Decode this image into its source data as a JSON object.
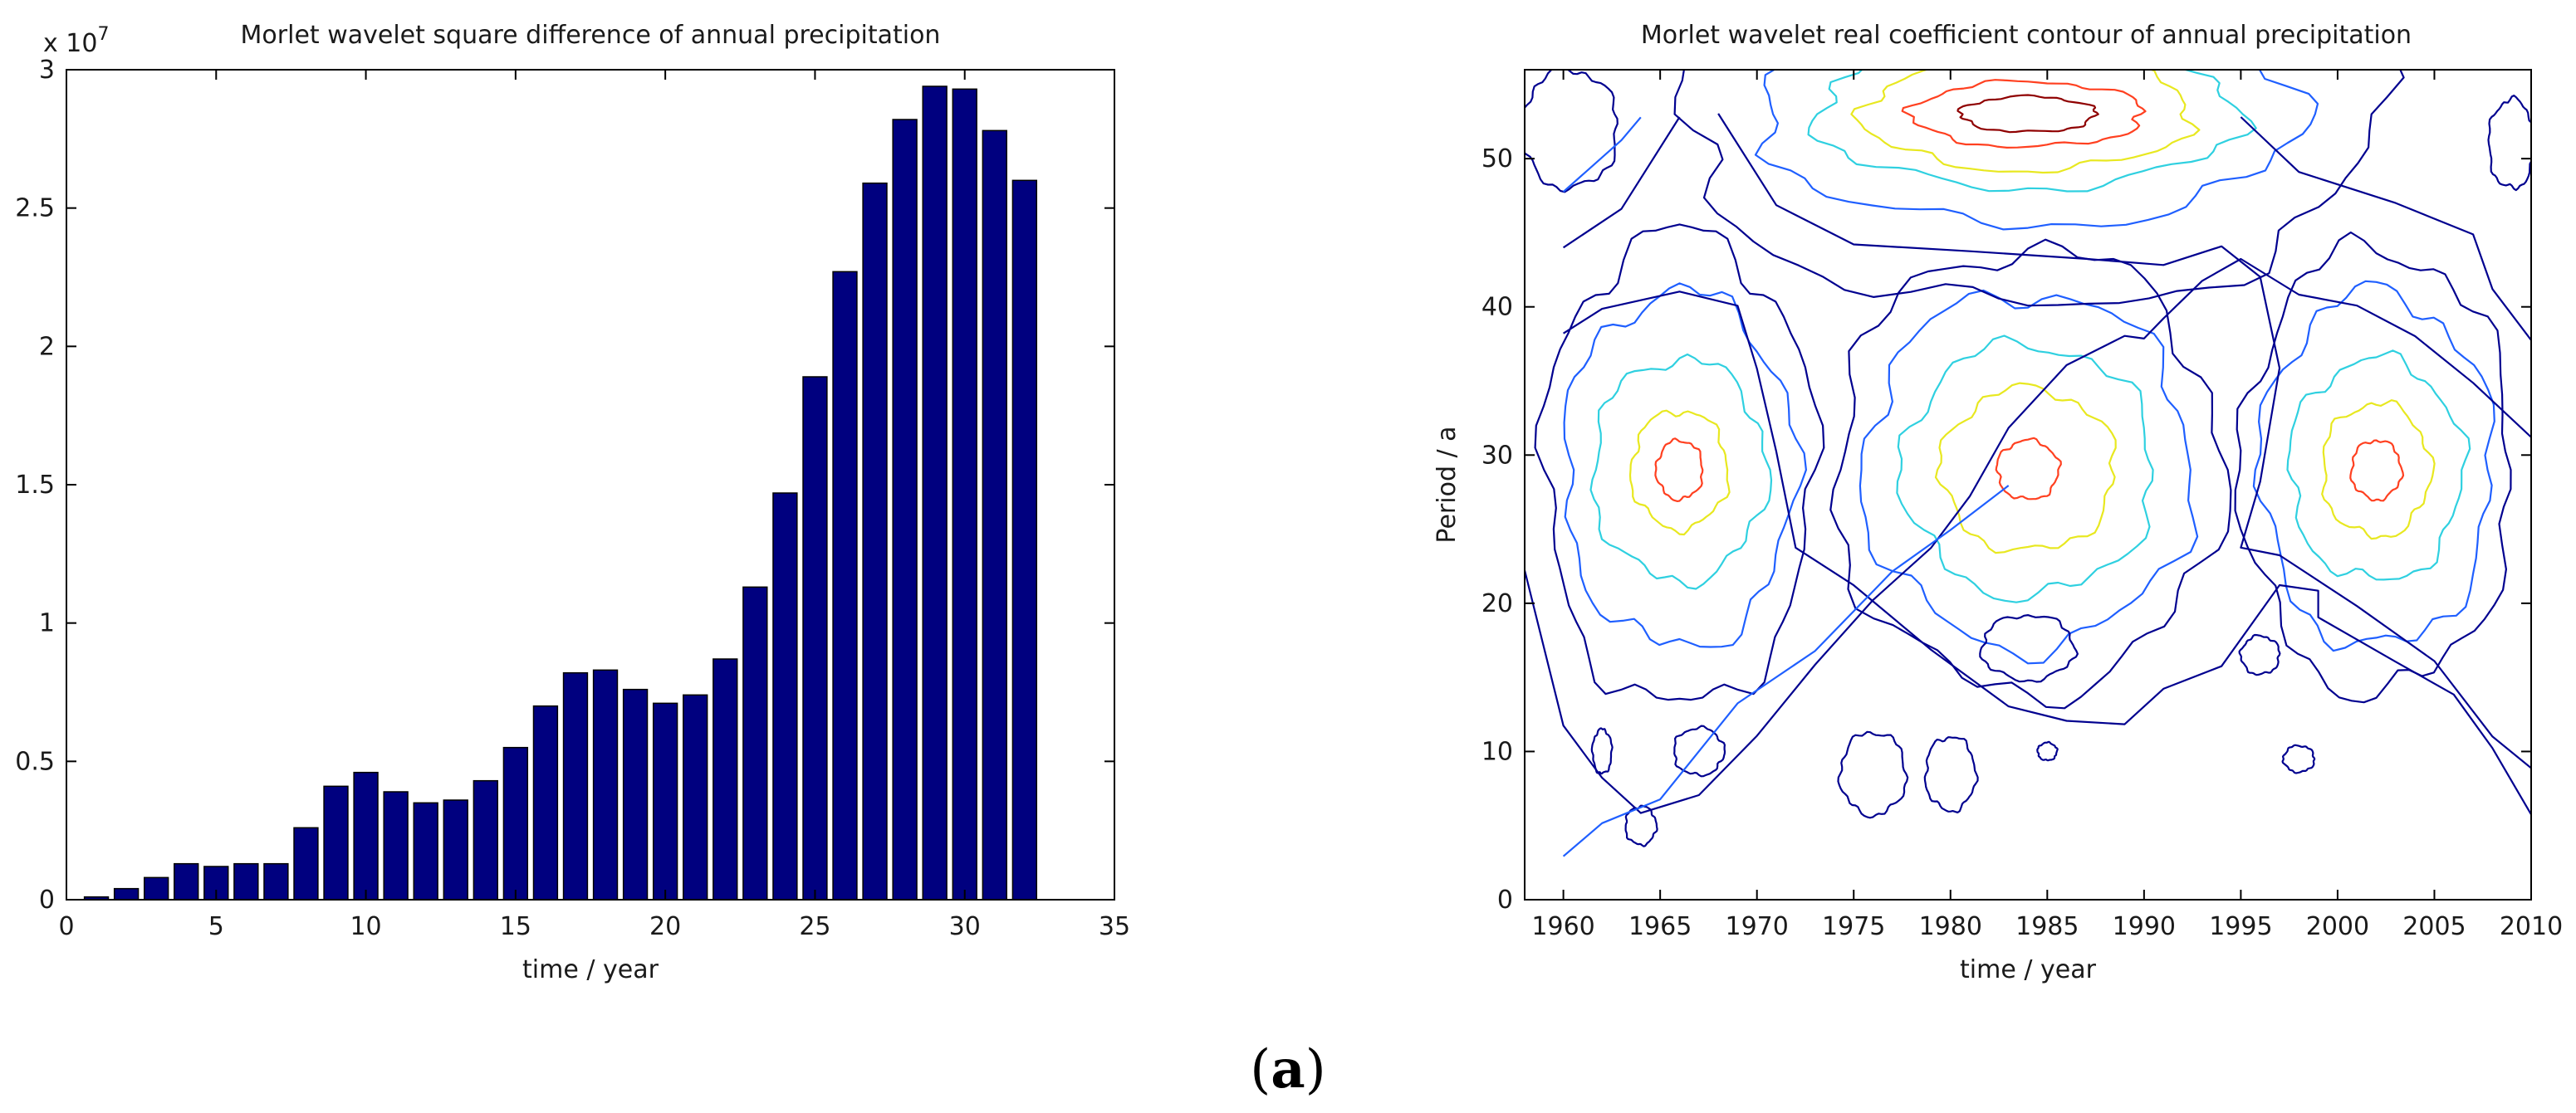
{
  "panel_label": {
    "open": "(",
    "letter": "a",
    "close": ")"
  },
  "chart_data": [
    {
      "type": "bar",
      "title": "Morlet wavelet square difference of annual precipitation",
      "xlabel": "time / year",
      "ylabel": "",
      "y_multiplier_label": "x 10",
      "y_multiplier_exponent": "7",
      "xlim": [
        0,
        35
      ],
      "ylim": [
        0,
        3
      ],
      "xticks": [
        0,
        5,
        10,
        15,
        20,
        25,
        30,
        35
      ],
      "xtick_labels": [
        "0",
        "5",
        "10",
        "15",
        "20",
        "25",
        "30",
        "35"
      ],
      "yticks": [
        0,
        0.5,
        1,
        1.5,
        2,
        2.5,
        3
      ],
      "ytick_labels": [
        "0",
        "0.5",
        "1",
        "1.5",
        "2",
        "2.5",
        "3"
      ],
      "bar_color": "#00007f",
      "x": [
        1,
        2,
        3,
        4,
        5,
        6,
        7,
        8,
        9,
        10,
        11,
        12,
        13,
        14,
        15,
        16,
        17,
        18,
        19,
        20,
        21,
        22,
        23,
        24,
        25,
        26,
        27,
        28,
        29,
        30,
        31,
        32
      ],
      "values": [
        0.01,
        0.04,
        0.08,
        0.13,
        0.12,
        0.13,
        0.13,
        0.26,
        0.41,
        0.46,
        0.39,
        0.35,
        0.36,
        0.43,
        0.55,
        0.7,
        0.82,
        0.83,
        0.76,
        0.71,
        0.74,
        0.87,
        1.13,
        1.47,
        1.89,
        2.27,
        2.59,
        2.82,
        2.94,
        2.93,
        2.78,
        2.6
      ]
    },
    {
      "type": "contour",
      "title": "Morlet wavelet real coefficient contour of annual precipitation",
      "xlabel": "time / year",
      "ylabel": "Period / a",
      "xlim": [
        1958,
        2010
      ],
      "ylim": [
        0,
        56
      ],
      "xticks": [
        1960,
        1965,
        1970,
        1975,
        1980,
        1985,
        1990,
        1995,
        2000,
        2005,
        2010
      ],
      "xtick_labels": [
        "1960",
        "1965",
        "1970",
        "1975",
        "1980",
        "1985",
        "1990",
        "1995",
        "2000",
        "2005",
        "2010"
      ],
      "yticks": [
        0,
        10,
        20,
        30,
        40,
        50
      ],
      "ytick_labels": [
        "0",
        "10",
        "20",
        "30",
        "40",
        "50"
      ],
      "level_colors": [
        "#00008f",
        "#1f5fff",
        "#2fd0e0",
        "#e8e820",
        "#ff4020",
        "#8f0000"
      ],
      "centers": [
        {
          "x": 1966,
          "y": 29,
          "sign": 1,
          "rings": [
            [
              7,
              16
            ],
            [
              6,
              12
            ],
            [
              4.5,
              7.5
            ],
            [
              2.5,
              4
            ],
            [
              1.2,
              2
            ]
          ]
        },
        {
          "x": 1984,
          "y": 29,
          "sign": 1,
          "rings": [
            [
              10,
              15
            ],
            [
              8.5,
              12
            ],
            [
              6.5,
              8.5
            ],
            [
              4.5,
              5.5
            ],
            [
              1.6,
              2
            ]
          ]
        },
        {
          "x": 2002,
          "y": 29,
          "sign": 1,
          "rings": [
            [
              7,
              15
            ],
            [
              6,
              12
            ],
            [
              4.5,
              7.5
            ],
            [
              2.8,
              4.5
            ],
            [
              1.3,
              2
            ]
          ]
        },
        {
          "x": 1984,
          "y": 53,
          "sign": -1,
          "rings": [
            [
              18,
              13
            ],
            [
              14,
              7.5
            ],
            [
              11,
              5
            ],
            [
              8.5,
              3.8
            ],
            [
              6,
              2.2
            ],
            [
              3.5,
              1.2
            ]
          ]
        },
        {
          "x": 1984,
          "y": 17,
          "sign": -1,
          "rings": [
            [
              2.4,
              2.2
            ]
          ]
        },
        {
          "x": 1996,
          "y": 16.5,
          "sign": -1,
          "rings": [
            [
              1,
              1.3
            ]
          ]
        },
        {
          "x": 1967,
          "y": 10,
          "sign": -1,
          "rings": [
            [
              1.3,
              1.6
            ]
          ]
        },
        {
          "x": 1976,
          "y": 8.5,
          "sign": -1,
          "rings": [
            [
              1.7,
              2.8
            ]
          ]
        },
        {
          "x": 1962,
          "y": 10,
          "sign": 1,
          "rings": [
            [
              0.5,
              1.5
            ]
          ]
        },
        {
          "x": 1964,
          "y": 5,
          "sign": -1,
          "rings": [
            [
              0.8,
              1.3
            ]
          ]
        },
        {
          "x": 1998,
          "y": 9.5,
          "sign": -1,
          "rings": [
            [
              0.8,
              0.9
            ]
          ]
        },
        {
          "x": 1985,
          "y": 10,
          "sign": -1,
          "rings": [
            [
              0.5,
              0.6
            ]
          ]
        },
        {
          "x": 1980,
          "y": 8.5,
          "sign": -1,
          "rings": [
            [
              1.3,
              2.5
            ]
          ]
        },
        {
          "x": 1960.3,
          "y": 52,
          "sign": 1,
          "rings": [
            [
              2.5,
              4
            ]
          ]
        },
        {
          "x": 2009,
          "y": 51,
          "sign": 1,
          "rings": [
            [
              1.2,
              3
            ]
          ]
        }
      ],
      "outer_lines": [
        {
          "level": 0,
          "points": [
            [
              1960,
              44
            ],
            [
              1963,
              46.5
            ],
            [
              1966,
              53
            ]
          ]
        },
        {
          "level": 0,
          "points": [
            [
              1960,
              38
            ],
            [
              1962,
              40
            ],
            [
              1966,
              41
            ],
            [
              1969,
              40
            ],
            [
              1970,
              36
            ],
            [
              1971,
              30
            ],
            [
              1972,
              24
            ],
            [
              1975,
              21
            ],
            [
              1979,
              17
            ],
            [
              1983,
              13
            ],
            [
              1986,
              12
            ],
            [
              1989,
              12
            ],
            [
              1991,
              14
            ],
            [
              1994,
              16
            ],
            [
              1997,
              21
            ],
            [
              1999,
              21
            ],
            [
              1999,
              19
            ],
            [
              2003,
              16
            ],
            [
              2006,
              14
            ],
            [
              2008,
              10
            ],
            [
              2010,
              6
            ]
          ]
        },
        {
          "level": 0,
          "points": [
            [
              1958,
              22
            ],
            [
              1960,
              12
            ],
            [
              1962,
              8
            ],
            [
              1964,
              6
            ],
            [
              1967,
              7
            ],
            [
              1970,
              11
            ],
            [
              1973,
              16
            ],
            [
              1976,
              20
            ],
            [
              1979,
              24
            ],
            [
              1981,
              27
            ],
            [
              1983,
              32
            ],
            [
              1986,
              36
            ],
            [
              1989,
              38
            ],
            [
              1990,
              38
            ],
            [
              1991,
              39
            ],
            [
              1993,
              42
            ],
            [
              1995,
              43
            ],
            [
              1998,
              41
            ],
            [
              2001,
              40
            ],
            [
              2004,
              38
            ],
            [
              2007,
              35
            ],
            [
              2010,
              31
            ]
          ]
        },
        {
          "level": 0,
          "points": [
            [
              1968,
              53
            ],
            [
              1971,
              47
            ],
            [
              1975,
              44
            ],
            [
              1981,
              44
            ],
            [
              1987,
              43
            ],
            [
              1991,
              43
            ],
            [
              1994,
              44
            ],
            [
              1996,
              42
            ],
            [
              1997,
              36
            ],
            [
              1996,
              28
            ],
            [
              1995,
              24
            ],
            [
              1997,
              23
            ],
            [
              2001,
              20
            ],
            [
              2005,
              16
            ],
            [
              2008,
              11
            ],
            [
              2010,
              9
            ]
          ]
        },
        {
          "level": 0,
          "points": [
            [
              1995,
              53
            ],
            [
              1998,
              49
            ],
            [
              2003,
              47
            ],
            [
              2007,
              45
            ],
            [
              2008,
              41
            ],
            [
              2010,
              38
            ]
          ]
        },
        {
          "level": 1,
          "points": [
            [
              1960,
              48
            ],
            [
              1963,
              51
            ],
            [
              1964,
              53
            ]
          ]
        },
        {
          "level": 1,
          "points": [
            [
              1960,
              3
            ],
            [
              1962,
              5
            ],
            [
              1965,
              7
            ],
            [
              1969,
              13
            ],
            [
              1973,
              17
            ],
            [
              1977,
              22
            ],
            [
              1980,
              25
            ],
            [
              1983,
              28
            ]
          ]
        }
      ]
    }
  ]
}
